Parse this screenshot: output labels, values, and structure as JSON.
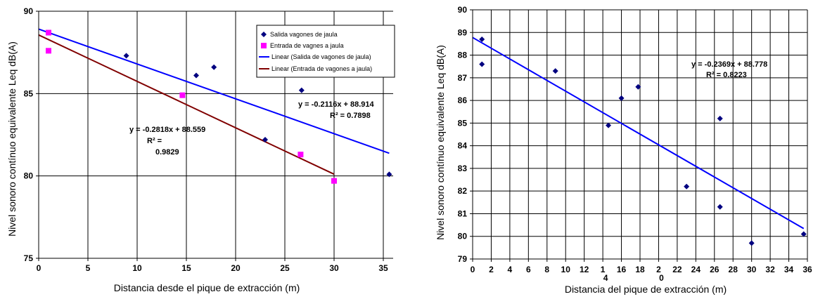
{
  "chart_data": [
    {
      "type": "scatter",
      "xlabel": "Distancia desde el pique de extracción (m)",
      "ylabel": "Nivel sonoro contínuo equivalente Leq dB(A)",
      "xlim": [
        0,
        36
      ],
      "ylim": [
        75,
        90
      ],
      "x_ticks": [
        "0",
        "5",
        "10",
        "15",
        "20",
        "25",
        "30",
        "35"
      ],
      "y_ticks": [
        "75",
        "80",
        "85",
        "90"
      ],
      "grid": true,
      "legend_position": "top-right",
      "series": [
        {
          "name": "Salida vagones de jaula",
          "marker": "diamond",
          "color": "#000080",
          "points": [
            [
              1,
              87.6
            ],
            [
              1,
              88.7
            ],
            [
              8.9,
              87.3
            ],
            [
              16,
              86.1
            ],
            [
              17.8,
              86.6
            ],
            [
              23,
              82.2
            ],
            [
              26.7,
              85.2
            ],
            [
              35.6,
              80.1
            ]
          ]
        },
        {
          "name": "Entrada de vagnes a jaula",
          "marker": "square",
          "color": "#FF00FF",
          "points": [
            [
              1,
              87.6
            ],
            [
              1,
              88.7
            ],
            [
              14.6,
              84.9
            ],
            [
              26.6,
              81.3
            ],
            [
              30,
              79.7
            ]
          ]
        }
      ],
      "trendlines": [
        {
          "name": "Linear (Salida de vagones de jaula)",
          "color": "#0000FF",
          "slope": -0.2116,
          "intercept": 88.914,
          "x_range": [
            0,
            35.6
          ]
        },
        {
          "name": "Linear (Entrada de vagones a jaula)",
          "color": "#800000",
          "slope": -0.2818,
          "intercept": 88.559,
          "x_range": [
            0,
            30
          ]
        }
      ],
      "annotations": [
        {
          "id": "eq_blue_line1",
          "text": "y = -0.2116x + 88.914"
        },
        {
          "id": "eq_blue_line2",
          "text": "R² = 0.7898"
        },
        {
          "id": "eq_red_line1",
          "text": "y = -0.2818x + 88.559"
        },
        {
          "id": "eq_red_line2",
          "text": "R² ="
        },
        {
          "id": "eq_red_line3",
          "text": "0.9829"
        }
      ]
    },
    {
      "type": "scatter",
      "xlabel": "Distancia del pique de extracción (m)",
      "ylabel": "Nivel sonoro contínuo equivalente Leq dB(A)",
      "xlim": [
        0,
        36
      ],
      "ylim": [
        79,
        90
      ],
      "x_ticks": [
        "0",
        "2",
        "4",
        "6",
        "8",
        "10",
        "12",
        "1",
        "16",
        "18",
        "2",
        "22",
        "24",
        "26",
        "28",
        "30",
        "32",
        "34",
        "36"
      ],
      "x_tick_overlap": {
        "under_tick": "14",
        "text": "4"
      },
      "x_tick_overlap_2": {
        "under_tick": "20",
        "text": "0"
      },
      "y_ticks": [
        "79",
        "80",
        "81",
        "82",
        "83",
        "84",
        "85",
        "86",
        "87",
        "88",
        "89",
        "90"
      ],
      "grid": true,
      "series": [
        {
          "name": "",
          "marker": "diamond",
          "color": "#000080",
          "points": [
            [
              1,
              88.7
            ],
            [
              1,
              87.6
            ],
            [
              8.9,
              87.3
            ],
            [
              14.6,
              84.9
            ],
            [
              16,
              86.1
            ],
            [
              17.8,
              86.6
            ],
            [
              23,
              82.2
            ],
            [
              26.6,
              85.2
            ],
            [
              26.6,
              81.3
            ],
            [
              30,
              79.7
            ],
            [
              35.6,
              80.1
            ]
          ]
        }
      ],
      "trendlines": [
        {
          "color": "#0000FF",
          "slope": -0.2369,
          "intercept": 88.778,
          "x_range": [
            0,
            35.6
          ]
        }
      ],
      "annotations": [
        {
          "id": "eq_line1",
          "text": "y = -0.2369x + 88.778"
        },
        {
          "id": "eq_line2",
          "text": "R² = 0.8223"
        }
      ]
    }
  ]
}
